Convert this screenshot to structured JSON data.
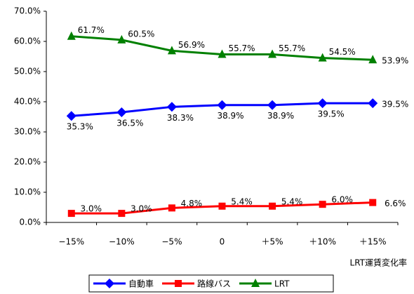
{
  "chart_data": {
    "type": "line",
    "x_label": "LRT運賃変化率",
    "categories": [
      "−15%",
      "−10%",
      "−5%",
      "0",
      "＋5%",
      "＋10%",
      "＋15%"
    ],
    "series": [
      {
        "name": "自動車",
        "color": "#0000ff",
        "marker": "diamond",
        "values": [
          35.3,
          36.5,
          38.3,
          38.9,
          38.9,
          39.5,
          39.5
        ],
        "value_labels": [
          "35.3%",
          "36.5%",
          "38.3%",
          "38.9%",
          "38.9%",
          "39.5%",
          "39.5%"
        ]
      },
      {
        "name": "路線バス",
        "color": "#ff0000",
        "marker": "square",
        "values": [
          3.0,
          3.0,
          4.8,
          5.4,
          5.4,
          6.0,
          6.6
        ],
        "value_labels": [
          "3.0%",
          "3.0%",
          "4.8%",
          "5.4%",
          "5.4%",
          "6.0%",
          "6.6%"
        ]
      },
      {
        "name": "LRT",
        "color": "#008000",
        "marker": "triangle",
        "values": [
          61.7,
          60.5,
          56.9,
          55.7,
          55.7,
          54.5,
          53.9
        ],
        "value_labels": [
          "61.7%",
          "60.5%",
          "56.9%",
          "55.7%",
          "55.7%",
          "54.5%",
          "53.9%"
        ]
      }
    ],
    "ylim": [
      0,
      70
    ],
    "yticks": [
      {
        "value": 0,
        "label": "0.0%"
      },
      {
        "value": 10,
        "label": "10.0%"
      },
      {
        "value": 20,
        "label": "20.0%"
      },
      {
        "value": 30,
        "label": "30.0%"
      },
      {
        "value": 40,
        "label": "40.0%"
      },
      {
        "value": 50,
        "label": "50.0%"
      },
      {
        "value": 60,
        "label": "60.0%"
      },
      {
        "value": 70,
        "label": "70.0%"
      }
    ],
    "legend": "bottom"
  }
}
